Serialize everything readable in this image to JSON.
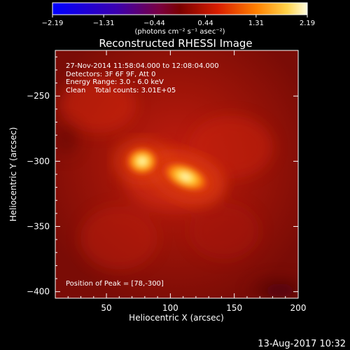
{
  "chart_data": {
    "type": "heatmap",
    "title": "Reconstructed RHESSI Image",
    "xlabel": "Heliocentric X (arcsec)",
    "ylabel": "Heliocentric Y (arcsec)",
    "xlim": [
      10,
      200
    ],
    "ylim": [
      -405,
      -215
    ],
    "x_ticks": [
      50,
      100,
      150,
      200
    ],
    "x_tick_labels": [
      "50",
      "100",
      "150",
      "200"
    ],
    "y_ticks": [
      -250,
      -300,
      -350,
      -400
    ],
    "y_tick_labels": [
      "−250",
      "−300",
      "−350",
      "−400"
    ],
    "colorbar": {
      "range": [
        -2.19,
        2.19
      ],
      "ticks": [
        -2.19,
        -1.31,
        -0.44,
        0.44,
        1.31,
        2.19
      ],
      "tick_labels": [
        "−2.19",
        "−1.31",
        "−0.44",
        "0.44",
        "1.31",
        "2.19"
      ],
      "units": "(photons cm⁻² s⁻¹ asec⁻²)"
    },
    "annotations": [
      "27-Nov-2014 11:58:04.000 to 12:08:04.000",
      "Detectors: 3F 6F 9F, Att 0",
      "Energy Range: 3.0 - 6.0 keV",
      "Clean    Total counts: 3.01E+05"
    ],
    "peak_label": "Position of Peak = [78,-300]",
    "sources": [
      {
        "x": 78,
        "y": -300,
        "level": 2.19
      },
      {
        "x": 112,
        "y": -312,
        "level": 1.9
      }
    ]
  },
  "footer": {
    "date": "13-Aug-2017 10:32"
  }
}
